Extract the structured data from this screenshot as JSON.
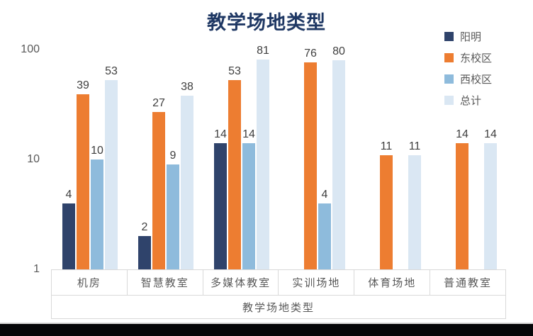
{
  "chart_data": {
    "type": "bar",
    "title": "教学场地类型",
    "xlabel": "教学场地类型",
    "y_scale": "log",
    "y_ticks": [
      1,
      10,
      100
    ],
    "ylim": [
      1,
      130
    ],
    "grid": false,
    "legend_position": "top-right",
    "categories": [
      "机房",
      "智慧教室",
      "多媒体教室",
      "实训场地",
      "体育场地",
      "普通教室"
    ],
    "series": [
      {
        "name": "阳明",
        "color": "#2F436B",
        "values": [
          4,
          2,
          14,
          null,
          null,
          null
        ]
      },
      {
        "name": "东校区",
        "color": "#ED7D31",
        "values": [
          39,
          27,
          53,
          76,
          11,
          14
        ]
      },
      {
        "name": "西校区",
        "color": "#8EBBDC",
        "values": [
          10,
          9,
          14,
          4,
          null,
          null
        ]
      },
      {
        "name": "总计",
        "color": "#DAE7F3",
        "values": [
          53,
          38,
          81,
          80,
          11,
          14
        ]
      }
    ],
    "title_color": "#1F3864",
    "axis_text_color": "#595959",
    "data_label_color": "#3F3F3F"
  }
}
